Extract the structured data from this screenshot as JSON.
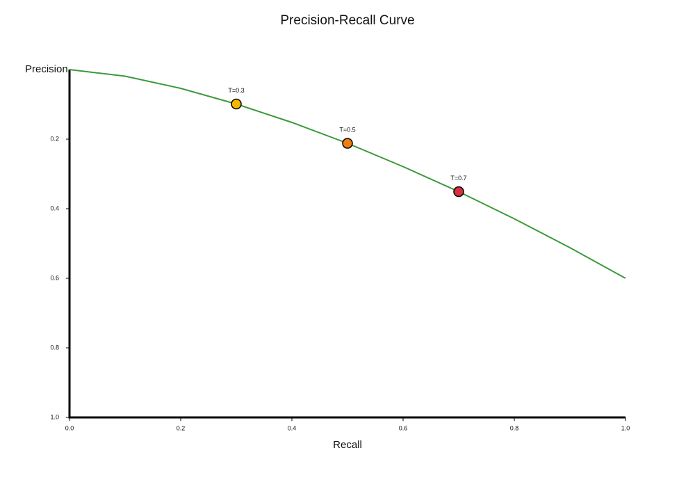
{
  "chart_data": {
    "type": "line",
    "title": "Precision-Recall Curve",
    "x_label": "Recall",
    "y_label": "Precision",
    "series": [
      {
        "color": "#3a9a3a",
        "x": [
          0,
          0.1,
          0.2,
          0.3,
          0.4,
          0.5,
          0.6,
          0.7,
          0.8,
          0.9,
          1
        ],
        "values": [
          0,
          0.019,
          0.054,
          0.099,
          0.152,
          0.212,
          0.279,
          0.351,
          0.429,
          0.512,
          0.6
        ]
      }
    ],
    "points": {
      "x": [
        0.3,
        0.5,
        0.7
      ],
      "values": [
        0.099,
        0.212,
        0.351
      ],
      "labels": [
        "T=0.3",
        "T=0.5",
        "T=0.7"
      ],
      "colors": [
        "#f5b800",
        "#f07f12",
        "#d93040"
      ]
    },
    "xlim": [
      0,
      1
    ],
    "ylim": [
      0,
      1
    ],
    "y_inverted": true,
    "xticks": [
      {
        "value": 0,
        "label": "0.0"
      },
      0.2,
      0.4,
      0.6,
      0.8,
      {
        "value": 1,
        "label": "1.0"
      }
    ],
    "yticks": [
      0.2,
      0.4,
      0.6,
      0.8,
      {
        "value": 1,
        "label": "1.0"
      }
    ]
  }
}
